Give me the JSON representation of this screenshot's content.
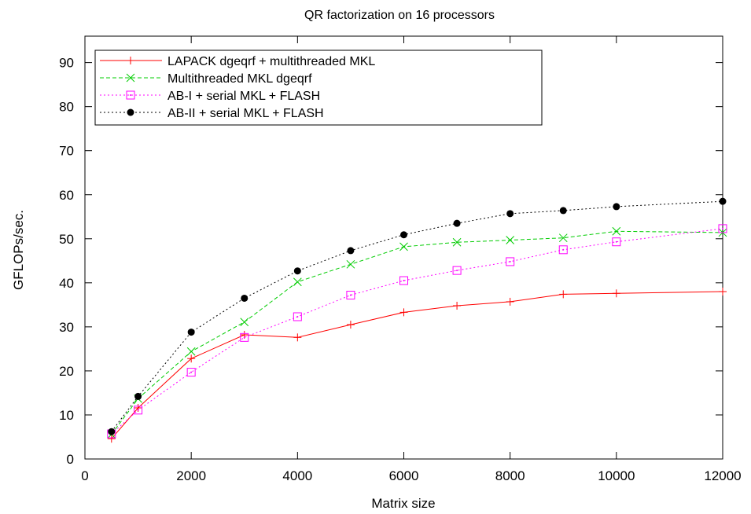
{
  "chart_data": {
    "type": "line",
    "title": "QR factorization on 16 processors",
    "xlabel": "Matrix size",
    "ylabel": "GFLOPs/sec.",
    "xlim": [
      0,
      12000
    ],
    "ylim": [
      0,
      96
    ],
    "xticks": [
      0,
      2000,
      4000,
      6000,
      8000,
      10000,
      12000
    ],
    "yticks": [
      0,
      10,
      20,
      30,
      40,
      50,
      60,
      70,
      80,
      90
    ],
    "grid": false,
    "legend_position": "top-left",
    "x": [
      500,
      1000,
      2000,
      3000,
      4000,
      5000,
      6000,
      7000,
      8000,
      9000,
      10000,
      12000
    ],
    "series": [
      {
        "name": "LAPACK dgeqrf + multithreaded MKL",
        "color": "#ff0000",
        "marker": "plus",
        "dash": "solid",
        "values": [
          4.6,
          11.6,
          22.8,
          28.2,
          27.6,
          30.5,
          33.3,
          34.8,
          35.7,
          37.4,
          37.6,
          38.0
        ]
      },
      {
        "name": "Multithreaded MKL dgeqrf",
        "color": "#00cc00",
        "marker": "x",
        "dash": "dashed",
        "values": [
          5.6,
          13.7,
          24.4,
          31.1,
          40.2,
          44.2,
          48.2,
          49.2,
          49.7,
          50.2,
          51.7,
          51.4
        ]
      },
      {
        "name": "AB-I + serial MKL + FLASH",
        "color": "#ff00ff",
        "marker": "square-dot",
        "dash": "dotted",
        "values": [
          5.7,
          11.1,
          19.7,
          27.6,
          32.3,
          37.2,
          40.5,
          42.8,
          44.8,
          47.5,
          49.3,
          52.3
        ]
      },
      {
        "name": "AB-II + serial MKL + FLASH",
        "color": "#000000",
        "marker": "filled-circle",
        "dash": "dotted",
        "values": [
          6.2,
          14.2,
          28.8,
          36.5,
          42.7,
          47.3,
          50.9,
          53.5,
          55.7,
          56.4,
          57.3,
          58.5
        ]
      }
    ]
  }
}
